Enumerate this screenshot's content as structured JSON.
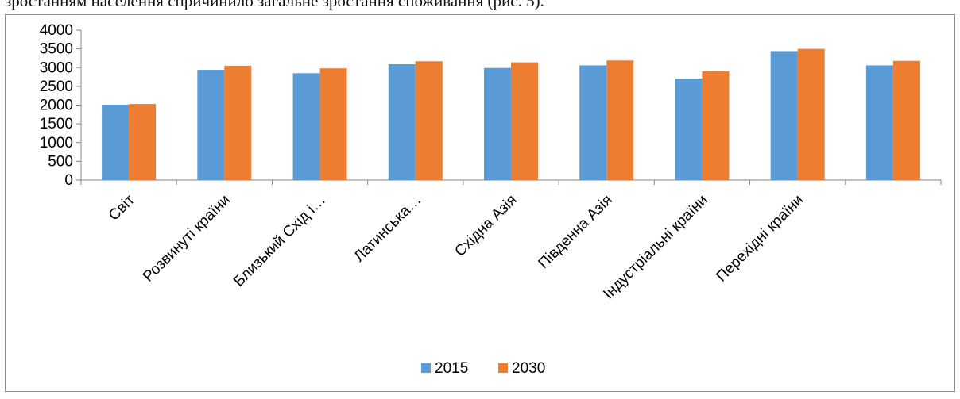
{
  "document": {
    "text_line": "зростанням населення спричинило загальне зростання споживання (рис. 5)."
  },
  "chart_data": {
    "type": "bar",
    "categories": [
      "Світ",
      "Розвинуті країни",
      "Близький Схід і…",
      "Латинська…",
      "Східна Азія",
      "Південна Азія",
      "Індустріальні країни",
      "Перехідні країни",
      ""
    ],
    "series": [
      {
        "name": "2015",
        "color": "#5b9bd5",
        "values": [
          2010,
          2940,
          2850,
          3090,
          2990,
          3060,
          2710,
          3440,
          3060
        ]
      },
      {
        "name": "2030",
        "color": "#ed7d31",
        "values": [
          2030,
          3050,
          2980,
          3170,
          3140,
          3190,
          2900,
          3500,
          3180
        ]
      }
    ],
    "y_ticks": [
      "0",
      "500",
      "1000",
      "1500",
      "2000",
      "2500",
      "3000",
      "3500",
      "4000"
    ],
    "ylim": [
      0,
      4000
    ],
    "grid": false,
    "legend_position": "bottom",
    "title": "",
    "xlabel": "",
    "ylabel": ""
  }
}
